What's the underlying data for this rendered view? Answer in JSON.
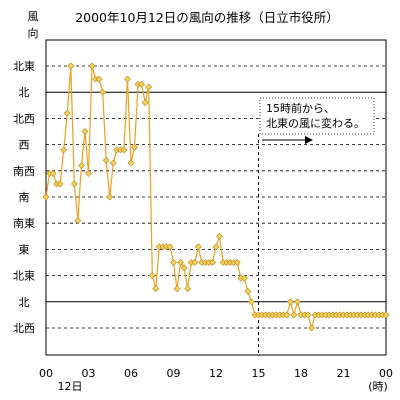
{
  "chart_data": {
    "type": "line",
    "title": "2000年10月12日の風向の推移（日立市役所）",
    "ylabel": "風向",
    "xlabel": "(時)",
    "date_label": "12日",
    "x_ticks": [
      "00",
      "03",
      "06",
      "09",
      "12",
      "15",
      "18",
      "21",
      "00"
    ],
    "y_categories": [
      "北東",
      "北",
      "北西",
      "西",
      "南西",
      "南",
      "南東",
      "東",
      "北東",
      "北",
      "北西"
    ],
    "annotation": [
      "15時前から、",
      "北東の風に変わる。"
    ],
    "annotation_x": 15,
    "series_color": "#f0a020",
    "marker_color": "#f5d060",
    "grid": true,
    "x": [
      0,
      0.25,
      0.5,
      0.75,
      1,
      1.25,
      1.5,
      1.75,
      2,
      2.25,
      2.5,
      2.75,
      3,
      3.25,
      3.5,
      3.75,
      4,
      4.25,
      4.5,
      4.75,
      5,
      5.25,
      5.5,
      5.75,
      6,
      6.25,
      6.5,
      6.75,
      7,
      7.25,
      7.5,
      7.75,
      8,
      8.25,
      8.5,
      8.75,
      9,
      9.25,
      9.5,
      9.75,
      10,
      10.25,
      10.5,
      10.75,
      11,
      11.25,
      11.5,
      11.75,
      12,
      12.25,
      12.5,
      12.75,
      13,
      13.25,
      13.5,
      13.75,
      14,
      14.25,
      14.5,
      14.75,
      15,
      15.25,
      15.5,
      15.75,
      16,
      16.25,
      16.5,
      16.75,
      17,
      17.25,
      17.5,
      17.75,
      18,
      18.25,
      18.5,
      18.75,
      19,
      19.25,
      19.5,
      19.75,
      20,
      20.25,
      20.5,
      20.75,
      21,
      21.25,
      21.5,
      21.75,
      22,
      22.25,
      22.5,
      22.75,
      23,
      23.25,
      23.5,
      23.75,
      24
    ],
    "y_values": [
      5,
      5.9,
      5.9,
      5.5,
      5.5,
      6.8,
      8.2,
      10,
      5.5,
      4.1,
      6.2,
      7.5,
      5.9,
      10,
      9.5,
      9.5,
      9,
      6.4,
      5,
      6.3,
      6.8,
      6.8,
      6.8,
      9.5,
      6.3,
      6.9,
      9.3,
      9.3,
      8.6,
      9.2,
      2,
      1.5,
      3.1,
      3.1,
      3.1,
      3.1,
      2.5,
      1.5,
      2.5,
      2.3,
      1.5,
      2.5,
      2.5,
      3.1,
      2.5,
      2.5,
      2.5,
      2.5,
      3.1,
      3.5,
      2.5,
      2.5,
      2.5,
      2.5,
      2.5,
      1.9,
      1.9,
      1.4,
      1,
      0.5,
      0.5,
      0.5,
      0.5,
      0.5,
      0.5,
      0.5,
      0.5,
      0.5,
      0.5,
      1,
      0.5,
      1,
      0.5,
      0.5,
      0.5,
      0,
      0.5,
      0.5,
      0.5,
      0.5,
      0.5,
      0.5,
      0.5,
      0.5,
      0.5,
      0.5,
      0.5,
      0.5,
      0.5,
      0.5,
      0.5,
      0.5,
      0.5,
      0.5,
      0.5,
      0.5,
      0.5
    ]
  }
}
